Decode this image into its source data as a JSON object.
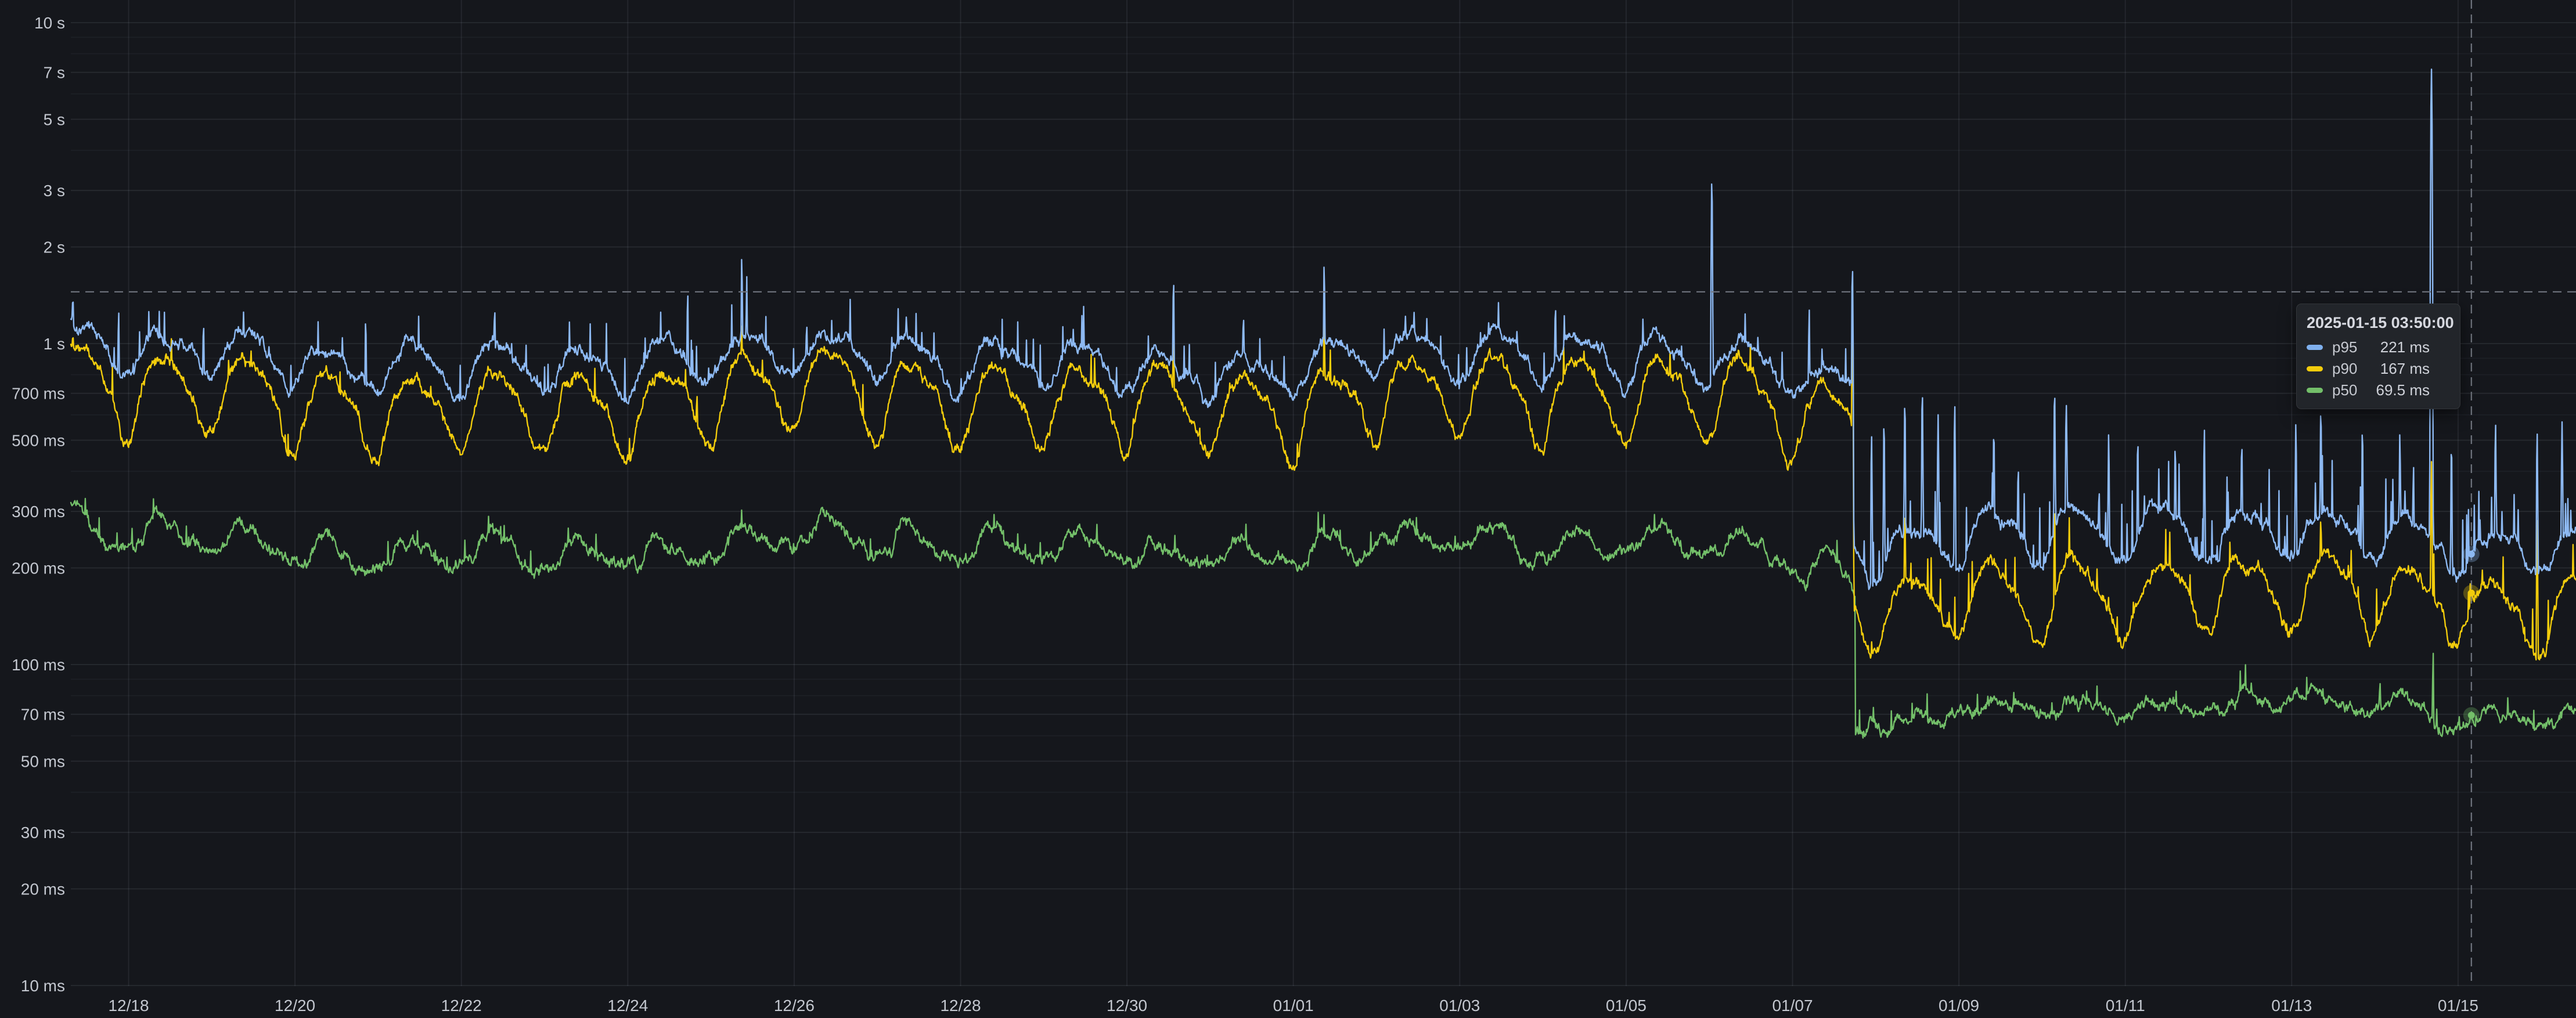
{
  "panel": {
    "title": "",
    "legend": "none"
  },
  "tooltip": {
    "timestamp": "2025-01-15 03:50:00",
    "rows": [
      {
        "series": "p95",
        "value": "221 ms",
        "color": "#7fb0ee"
      },
      {
        "series": "p90",
        "value": "167 ms",
        "color": "#f2cc0c"
      },
      {
        "series": "p50",
        "value": "69.5 ms",
        "color": "#73bf69"
      }
    ]
  },
  "colors": {
    "background": "#15171c",
    "grid_major": "rgba(204,212,228,0.10)",
    "grid_minor": "rgba(204,212,228,0.05)",
    "grid_vertical": "rgba(204,212,228,0.09)",
    "crosshair": "#70757e",
    "axis_text": "#c3c7cf"
  },
  "chart_data": {
    "type": "line",
    "title": "",
    "xlabel": "",
    "ylabel": "",
    "x": {
      "unit": "time",
      "visible_range": [
        "2024-12-17 ~07:00",
        "2025-01-16 ~10:00"
      ],
      "ticks": [
        {
          "label": "12/18",
          "day": 0
        },
        {
          "label": "12/20",
          "day": 2
        },
        {
          "label": "12/22",
          "day": 4
        },
        {
          "label": "12/24",
          "day": 6
        },
        {
          "label": "12/26",
          "day": 8
        },
        {
          "label": "12/28",
          "day": 10
        },
        {
          "label": "12/30",
          "day": 12
        },
        {
          "label": "01/01",
          "day": 14
        },
        {
          "label": "01/03",
          "day": 16
        },
        {
          "label": "01/05",
          "day": 18
        },
        {
          "label": "01/07",
          "day": 20
        },
        {
          "label": "01/09",
          "day": 22
        },
        {
          "label": "01/11",
          "day": 24
        },
        {
          "label": "01/13",
          "day": 26
        },
        {
          "label": "01/15",
          "day": 28
        }
      ]
    },
    "y": {
      "unit": "ms",
      "scale": "log10",
      "ticks": [
        {
          "label": "10 s",
          "ms": 10000
        },
        {
          "label": "7 s",
          "ms": 7000
        },
        {
          "label": "5 s",
          "ms": 5000
        },
        {
          "label": "3 s",
          "ms": 3000
        },
        {
          "label": "2 s",
          "ms": 2000
        },
        {
          "label": "1 s",
          "ms": 1000
        },
        {
          "label": "700 ms",
          "ms": 700
        },
        {
          "label": "500 ms",
          "ms": 500
        },
        {
          "label": "300 ms",
          "ms": 300
        },
        {
          "label": "200 ms",
          "ms": 200
        },
        {
          "label": "100 ms",
          "ms": 100
        },
        {
          "label": "70 ms",
          "ms": 70
        },
        {
          "label": "50 ms",
          "ms": 50
        },
        {
          "label": "30 ms",
          "ms": 30
        },
        {
          "label": "20 ms",
          "ms": 20
        },
        {
          "label": "10 ms",
          "ms": 10
        }
      ],
      "minor_gridlines_ms": [
        9000,
        8000,
        6000,
        4000,
        900,
        800,
        600,
        400,
        90,
        80,
        60,
        40
      ]
    },
    "step_change": {
      "day_offset": 20.73,
      "description": "all three percentiles drop sharply around 2025-01-07 ~17:30 (p95 ~880->250 ms, p90 ~680->165 ms, p50 ~230->72 ms)"
    },
    "crosshair": {
      "day_offset": 28.16,
      "y_ms": 1450,
      "style": "dashed"
    },
    "series": [
      {
        "name": "p95",
        "color": "#8db9f2",
        "pre_step_range_ms": [
          740,
          1060
        ],
        "post_step_range_ms": [
          205,
          300
        ],
        "hover_value_ms": 221,
        "gen": {
          "seed": 101,
          "bump": false,
          "step_day": 20.73,
          "target_ms": 221,
          "pre": {
            "base": 885,
            "amp": 0.155,
            "spikeProb": 0.02,
            "spikeLo": 1.06,
            "spikeRange": 0.28
          },
          "post": {
            "base": 252,
            "amp": 0.17,
            "spikeProb": 0.05,
            "spikeLo": 1.1,
            "spikeRange": 0.5
          }
        },
        "spikes_day_ms": [
          [
            -0.67,
            1460
          ],
          [
            -0.12,
            1280
          ],
          [
            0.9,
            1180
          ],
          [
            1.38,
            1290
          ],
          [
            2.85,
            1210
          ],
          [
            4.4,
            1320
          ],
          [
            5.3,
            1180
          ],
          [
            6.72,
            1460
          ],
          [
            7.25,
            1320
          ],
          [
            7.37,
            1870
          ],
          [
            7.43,
            1620
          ],
          [
            8.15,
            1190
          ],
          [
            9.35,
            1270
          ],
          [
            10.5,
            1190
          ],
          [
            11.48,
            1310
          ],
          [
            12.56,
            1590
          ],
          [
            13.4,
            1250
          ],
          [
            14.37,
            1770
          ],
          [
            15.45,
            1270
          ],
          [
            16.35,
            1220
          ],
          [
            17.15,
            1340
          ],
          [
            18.2,
            1210
          ],
          [
            19.03,
            3240
          ],
          [
            19.43,
            1240
          ],
          [
            20.2,
            1290
          ],
          [
            20.72,
            1740
          ],
          [
            20.95,
            520
          ],
          [
            21.1,
            570
          ],
          [
            21.35,
            660
          ],
          [
            21.56,
            710
          ],
          [
            21.75,
            600
          ],
          [
            21.95,
            645
          ],
          [
            22.42,
            540
          ],
          [
            23.15,
            715
          ],
          [
            23.29,
            655
          ],
          [
            23.8,
            525
          ],
          [
            24.15,
            505
          ],
          [
            24.6,
            485
          ],
          [
            24.95,
            545
          ],
          [
            25.4,
            495
          ],
          [
            26.05,
            565
          ],
          [
            26.35,
            625
          ],
          [
            26.85,
            545
          ],
          [
            27.3,
            525
          ],
          [
            27.68,
            7180
          ],
          [
            27.92,
            485
          ],
          [
            28.45,
            565
          ],
          [
            28.95,
            530
          ],
          [
            29.25,
            570
          ]
        ]
      },
      {
        "name": "p90",
        "color": "#f2cc0c",
        "pre_step_range_ms": [
          500,
          940
        ],
        "post_step_range_ms": [
          125,
          215
        ],
        "hover_value_ms": 167,
        "gen": {
          "seed": 202,
          "bump": false,
          "step_day": 20.73,
          "target_ms": 167,
          "pre": {
            "base": 680,
            "amp": 0.26,
            "spikeProb": 0.012,
            "spikeLo": 1.05,
            "spikeRange": 0.2
          },
          "post": {
            "base": 165,
            "amp": 0.23,
            "spikeProb": 0.028,
            "spikeLo": 1.07,
            "spikeRange": 0.3
          }
        },
        "spikes_day_ms": [
          [
            -0.67,
            1130
          ],
          [
            7.37,
            1160
          ],
          [
            12.56,
            1090
          ],
          [
            14.37,
            1180
          ],
          [
            20.72,
            1260
          ],
          [
            21.35,
            300
          ],
          [
            23.15,
            312
          ],
          [
            26.35,
            292
          ],
          [
            27.68,
            430
          ],
          [
            28.95,
            285
          ]
        ]
      },
      {
        "name": "p50",
        "color": "#73bf69",
        "pre_step_range_ms": [
          198,
          285
        ],
        "post_step_range_ms": [
          64,
          84
        ],
        "hover_value_ms": 69.5,
        "gen": {
          "seed": 303,
          "bump": true,
          "step_day": 20.755,
          "target_ms": 69.5,
          "pre": {
            "base": 230,
            "amp": 0.16,
            "spikeProb": 0.01,
            "spikeLo": 1.04,
            "spikeRange": 0.12
          },
          "post": {
            "base": 72.5,
            "amp": 0.06,
            "spikeProb": 0.012,
            "spikeLo": 1.05,
            "spikeRange": 0.12
          }
        },
        "spikes_day_ms": [
          [
            7.37,
            310
          ],
          [
            14.37,
            300
          ],
          [
            27.7,
            110
          ]
        ]
      }
    ]
  }
}
